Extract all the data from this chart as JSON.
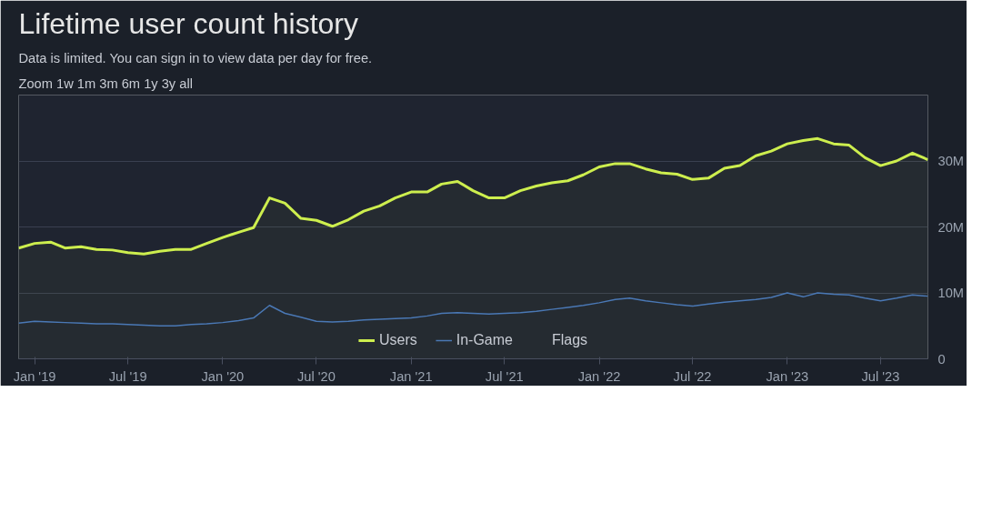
{
  "chart_data": {
    "type": "line",
    "title": "Lifetime user count history",
    "annotations": [
      "Data is limited. You can sign in to view data per day for free.",
      "Zoom  1w  1m  3m  6m  1y  3y  all",
      "Flags"
    ],
    "x": [
      "2018-12",
      "2019-01",
      "2019-02",
      "2019-03",
      "2019-04",
      "2019-05",
      "2019-06",
      "2019-07",
      "2019-08",
      "2019-09",
      "2019-10",
      "2019-11",
      "2019-12",
      "2020-01",
      "2020-02",
      "2020-03",
      "2020-04",
      "2020-05",
      "2020-06",
      "2020-07",
      "2020-08",
      "2020-09",
      "2020-10",
      "2020-11",
      "2020-12",
      "2021-01",
      "2021-02",
      "2021-03",
      "2021-04",
      "2021-05",
      "2021-06",
      "2021-07",
      "2021-08",
      "2021-09",
      "2021-10",
      "2021-11",
      "2021-12",
      "2022-01",
      "2022-02",
      "2022-03",
      "2022-04",
      "2022-05",
      "2022-06",
      "2022-07",
      "2022-08",
      "2022-09",
      "2022-10",
      "2022-11",
      "2022-12",
      "2023-01",
      "2023-02",
      "2023-03",
      "2023-04",
      "2023-05",
      "2023-06",
      "2023-07",
      "2023-08",
      "2023-09",
      "2023-10"
    ],
    "series": [
      {
        "name": "Users",
        "type": "area",
        "color": "#cdee4e",
        "values": [
          16.8,
          17.5,
          17.7,
          16.8,
          17.0,
          16.6,
          16.5,
          16.1,
          15.9,
          16.3,
          16.6,
          16.6,
          17.5,
          18.4,
          19.2,
          19.9,
          24.4,
          23.6,
          21.3,
          21.0,
          20.1,
          21.1,
          22.4,
          23.2,
          24.4,
          25.3,
          25.3,
          26.5,
          26.9,
          25.5,
          24.4,
          24.4,
          25.5,
          26.2,
          26.7,
          27.0,
          27.9,
          29.1,
          29.6,
          29.6,
          28.8,
          28.2,
          28.0,
          27.2,
          27.4,
          28.9,
          29.3,
          30.8,
          31.5,
          32.6,
          33.1,
          33.4,
          32.6,
          32.4,
          30.5,
          29.3,
          30.0,
          31.2,
          30.2
        ]
      },
      {
        "name": "In-Game",
        "color": "#4a78b5",
        "values": [
          5.4,
          5.7,
          5.6,
          5.5,
          5.4,
          5.3,
          5.3,
          5.2,
          5.1,
          5.0,
          5.0,
          5.2,
          5.3,
          5.5,
          5.8,
          6.2,
          8.1,
          6.9,
          6.3,
          5.7,
          5.6,
          5.7,
          5.9,
          6.0,
          6.1,
          6.2,
          6.5,
          6.9,
          7.0,
          6.9,
          6.8,
          6.9,
          7.0,
          7.2,
          7.5,
          7.8,
          8.1,
          8.5,
          9.0,
          9.2,
          8.8,
          8.5,
          8.2,
          8.0,
          8.3,
          8.6,
          8.8,
          9.0,
          9.3,
          10.0,
          9.4,
          10.0,
          9.8,
          9.7,
          9.2,
          8.8,
          9.2,
          9.7,
          9.5
        ]
      }
    ],
    "xlim": [
      "2018-12-01",
      "2023-10-01"
    ],
    "xticks": [
      {
        "value": "2019-01-01",
        "label": "Jan '19"
      },
      {
        "value": "2019-07-01",
        "label": "Jul '19"
      },
      {
        "value": "2020-01-01",
        "label": "Jan '20"
      },
      {
        "value": "2020-07-01",
        "label": "Jul '20"
      },
      {
        "value": "2021-01-01",
        "label": "Jan '21"
      },
      {
        "value": "2021-07-01",
        "label": "Jul '21"
      },
      {
        "value": "2022-01-01",
        "label": "Jan '22"
      },
      {
        "value": "2022-07-01",
        "label": "Jul '22"
      },
      {
        "value": "2023-01-01",
        "label": "Jan '23"
      },
      {
        "value": "2023-07-01",
        "label": "Jul '23"
      }
    ],
    "ylim": [
      0,
      40
    ],
    "yticks": [
      0,
      {
        "value": 10,
        "label": "10M"
      },
      {
        "value": 20,
        "label": "20M"
      },
      {
        "value": 30,
        "label": "30M"
      },
      {
        "value": 40,
        "label": null
      }
    ],
    "grid": "y",
    "legend": "bottom",
    "marker": "none",
    "line_style": "solid"
  }
}
